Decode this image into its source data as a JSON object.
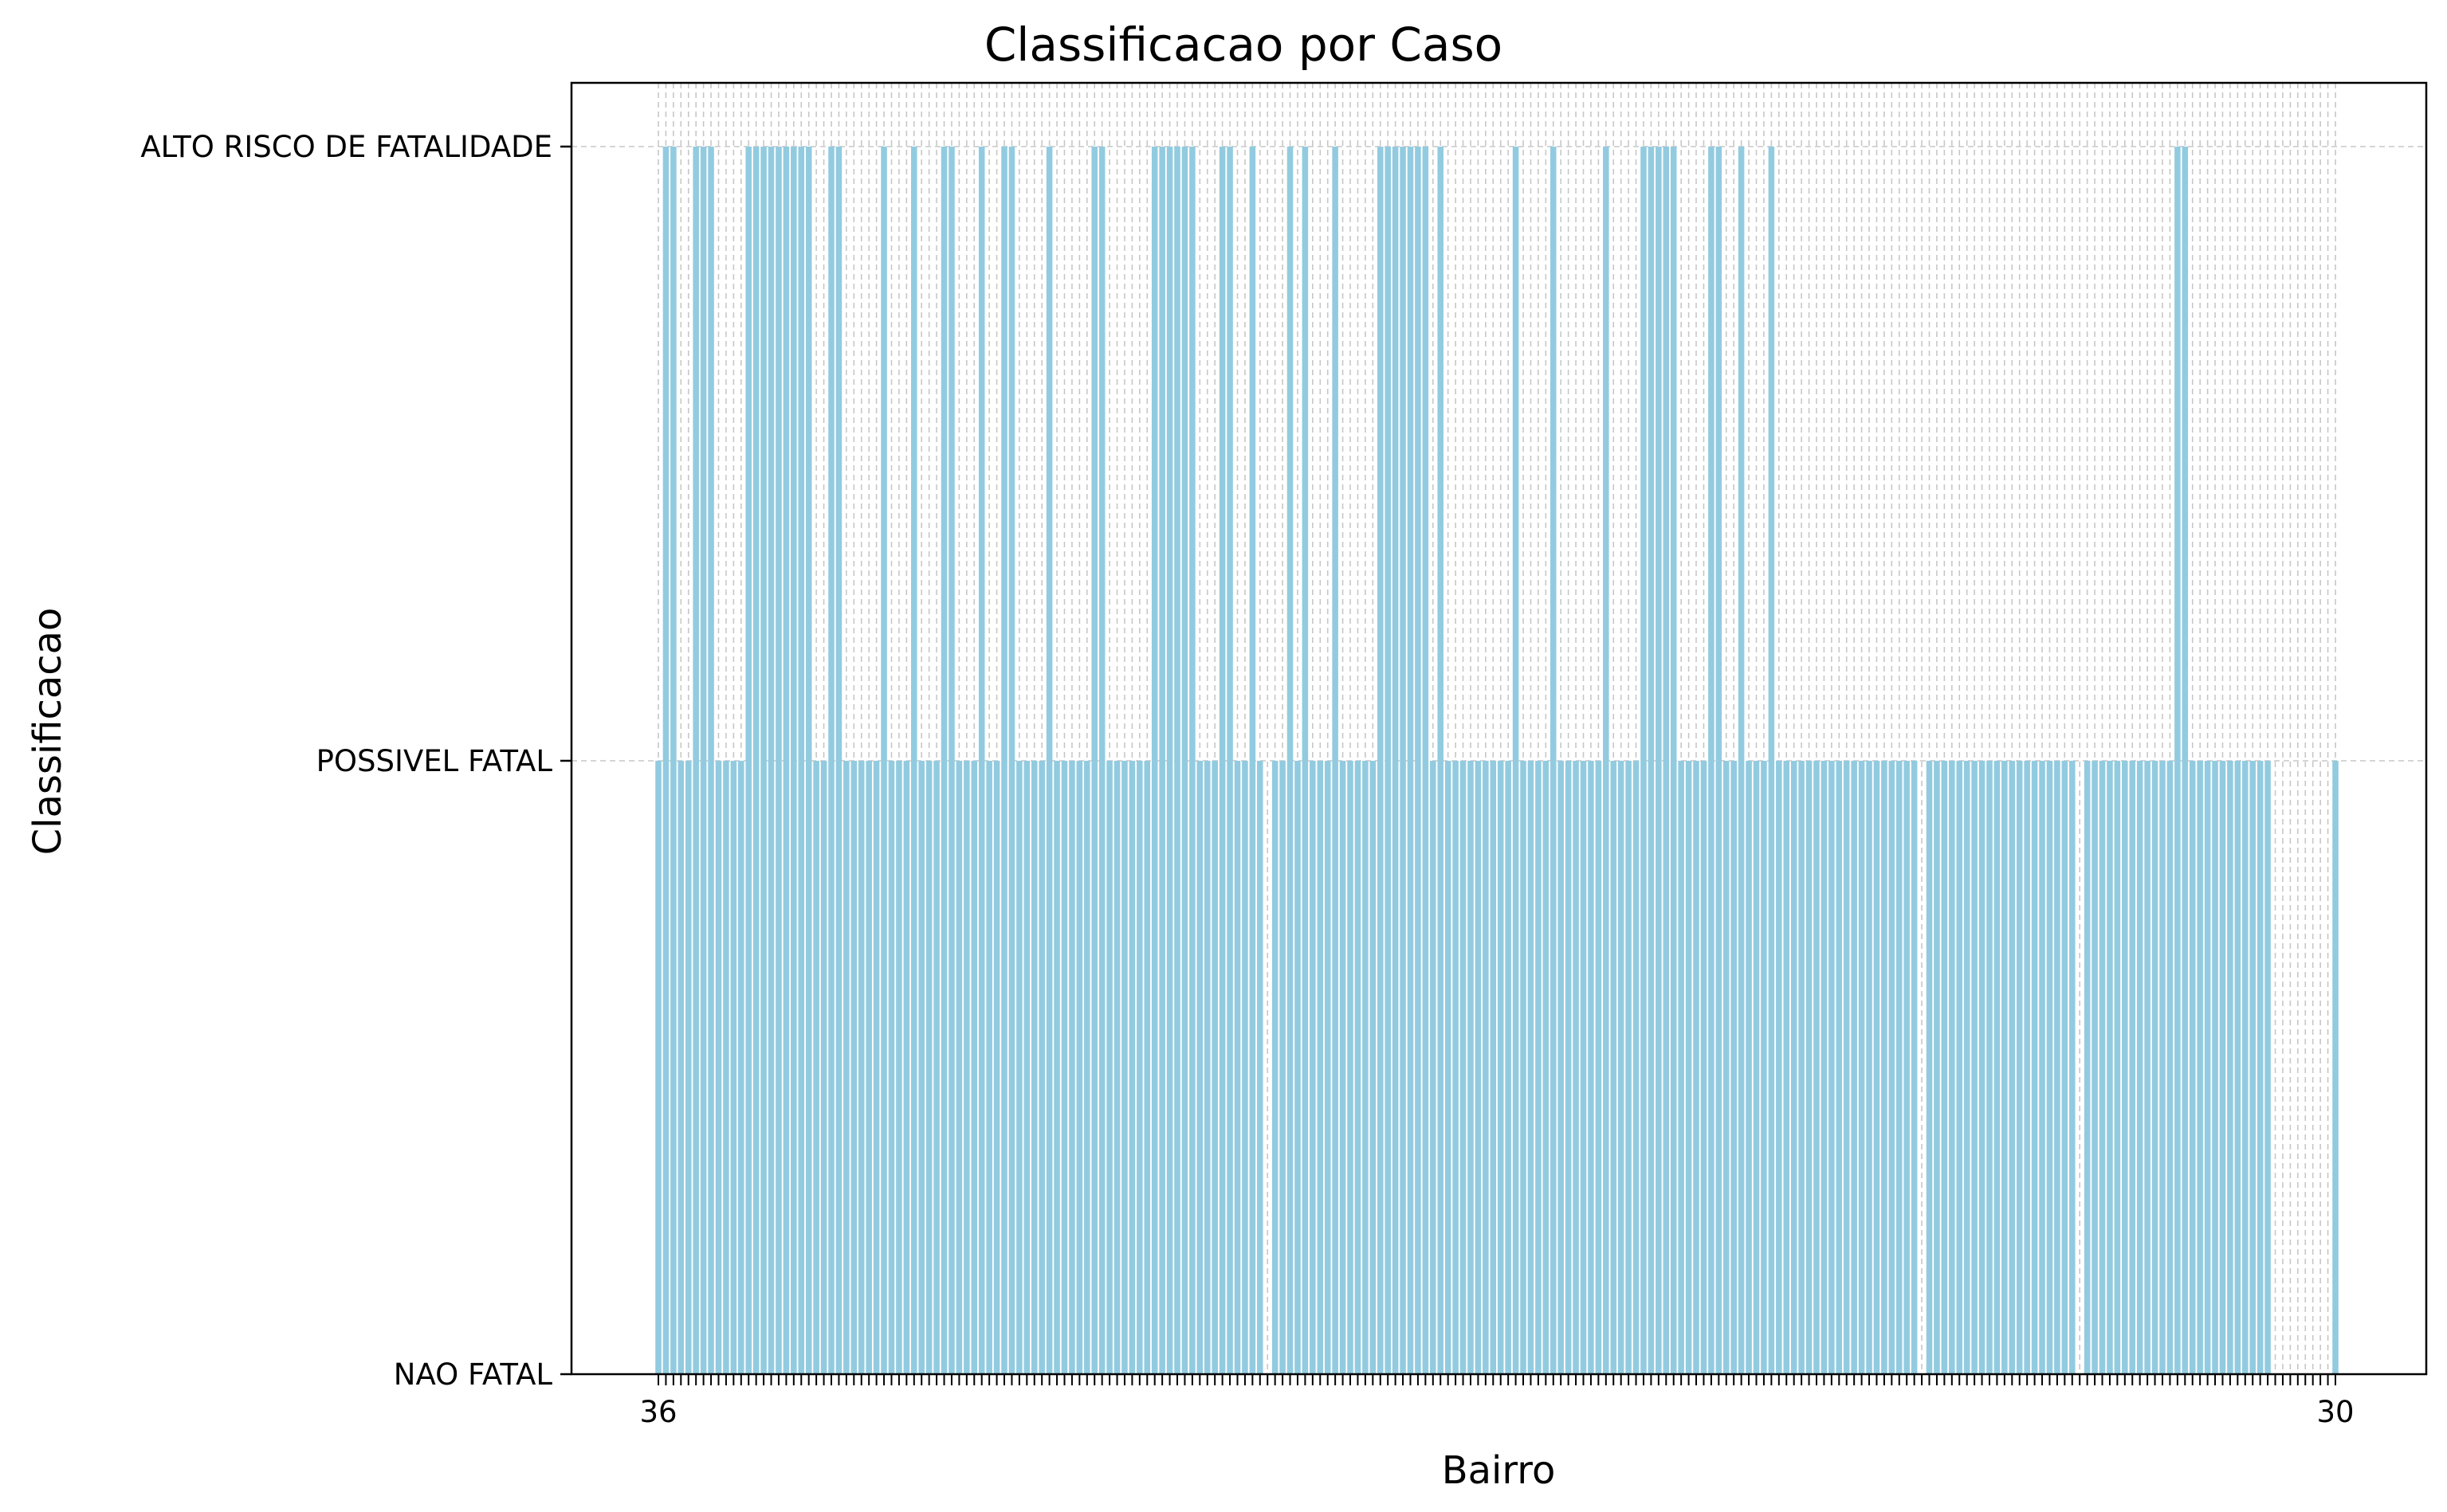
{
  "chart_data": {
    "type": "bar",
    "title": "Classificacao por Caso",
    "xlabel": "Bairro",
    "ylabel": "Classificacao",
    "y_categories": [
      "NAO FATAL",
      "POSSIVEL FATAL",
      "ALTO RISCO DE FATALIDADE"
    ],
    "x_tick_labels_note": "",
    "first_tick_label": "36",
    "last_tick_label": "30",
    "grid": true,
    "bar_color": "#92cbe0",
    "levels": [
      1,
      2,
      2,
      1,
      1,
      2,
      2,
      2,
      1,
      1,
      1,
      1,
      2,
      2,
      2,
      2,
      2,
      2,
      2,
      2,
      2,
      1,
      1,
      2,
      2,
      1,
      1,
      1,
      1,
      1,
      2,
      1,
      1,
      1,
      2,
      1,
      1,
      1,
      2,
      2,
      1,
      1,
      1,
      2,
      1,
      1,
      2,
      2,
      1,
      1,
      1,
      1,
      2,
      1,
      1,
      1,
      1,
      1,
      2,
      2,
      1,
      1,
      1,
      1,
      1,
      1,
      2,
      2,
      2,
      2,
      2,
      2,
      1,
      1,
      1,
      2,
      2,
      1,
      1,
      2,
      1,
      0,
      1,
      1,
      2,
      1,
      2,
      1,
      1,
      1,
      2,
      1,
      1,
      1,
      1,
      1,
      2,
      2,
      2,
      2,
      2,
      2,
      2,
      1,
      2,
      1,
      1,
      1,
      1,
      1,
      1,
      1,
      1,
      1,
      2,
      1,
      1,
      1,
      1,
      2,
      1,
      1,
      1,
      1,
      1,
      1,
      2,
      1,
      1,
      1,
      1,
      2,
      2,
      2,
      2,
      2,
      1,
      1,
      1,
      1,
      2,
      2,
      1,
      1,
      2,
      1,
      1,
      1,
      2,
      1,
      1,
      1,
      1,
      1,
      1,
      1,
      1,
      1,
      1,
      1,
      1,
      1,
      1,
      1,
      1,
      1,
      1,
      1,
      0,
      1,
      1,
      1,
      1,
      1,
      1,
      1,
      1,
      1,
      1,
      1,
      1,
      1,
      1,
      1,
      1,
      1,
      1,
      1,
      1,
      0,
      1,
      1,
      1,
      1,
      1,
      1,
      1,
      1,
      1,
      1,
      1,
      1,
      2,
      2,
      1,
      1,
      1,
      1,
      1,
      1,
      1,
      1,
      1,
      1,
      1,
      0,
      0,
      0,
      0,
      0,
      0,
      0,
      0,
      1
    ]
  }
}
